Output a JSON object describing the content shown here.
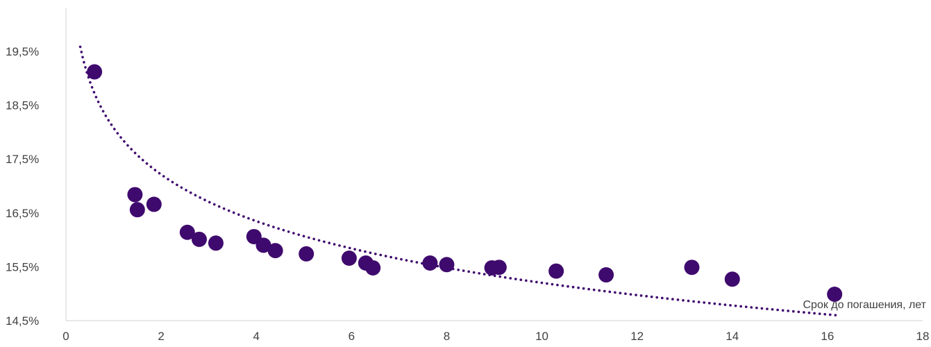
{
  "chart_data": {
    "type": "scatter",
    "title": "",
    "xlabel": "Срок до погашения, лет",
    "ylabel": "",
    "xlim": [
      0,
      18
    ],
    "ylim": [
      14.5,
      20.3
    ],
    "x_ticks": [
      0,
      2,
      4,
      6,
      8,
      10,
      12,
      14,
      16,
      18
    ],
    "x_tick_labels": [
      "0",
      "2",
      "4",
      "6",
      "8",
      "10",
      "12",
      "14",
      "16",
      "18"
    ],
    "y_ticks": [
      14.5,
      15.5,
      16.5,
      17.5,
      18.5,
      19.5
    ],
    "y_tick_labels": [
      "14,5%",
      "15,5%",
      "16,5%",
      "17,5%",
      "18,5%",
      "19,5%"
    ],
    "grid": false,
    "legend": "none",
    "colors": {
      "points": "#3f0a6e",
      "trend": "#3f0a6e",
      "axis": "#d9d9d9",
      "text": "#404040"
    },
    "series": [
      {
        "x": [
          0.6,
          1.45,
          1.5,
          1.85,
          2.55,
          2.8,
          3.15,
          3.95,
          4.15,
          4.4,
          5.05,
          5.95,
          6.3,
          6.45,
          7.65,
          8.0,
          8.95,
          9.1,
          10.3,
          11.35,
          13.15,
          14.0,
          16.15
        ],
        "y": [
          19.12,
          16.84,
          16.56,
          16.66,
          16.14,
          16.01,
          15.94,
          16.06,
          15.9,
          15.8,
          15.74,
          15.66,
          15.57,
          15.48,
          15.57,
          15.54,
          15.48,
          15.49,
          15.42,
          15.35,
          15.49,
          15.27,
          14.99
        ]
      }
    ],
    "trendline": {
      "type": "logarithmic",
      "style": "dotted",
      "x_range": [
        0.3,
        16.2
      ],
      "a": 18.08,
      "b": -1.25
    }
  }
}
